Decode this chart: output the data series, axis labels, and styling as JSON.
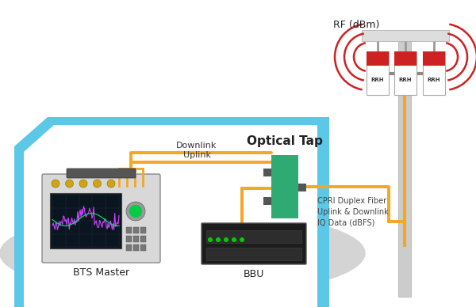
{
  "bg_color": "#ffffff",
  "room_color": "#5bc8e8",
  "orange_color": "#f5a623",
  "green_color": "#2eaa72",
  "red_color": "#cc2222",
  "labels": {
    "rf": "RF (dBm)",
    "optical_tap": "Optical Tap",
    "downlink": "Downlink",
    "uplink": "Uplink",
    "bts": "BTS Master",
    "bbu": "BBU",
    "cpri": "CPRI Duplex Fiber\nUplink & Downlink\nIQ Data (dBFS)"
  }
}
